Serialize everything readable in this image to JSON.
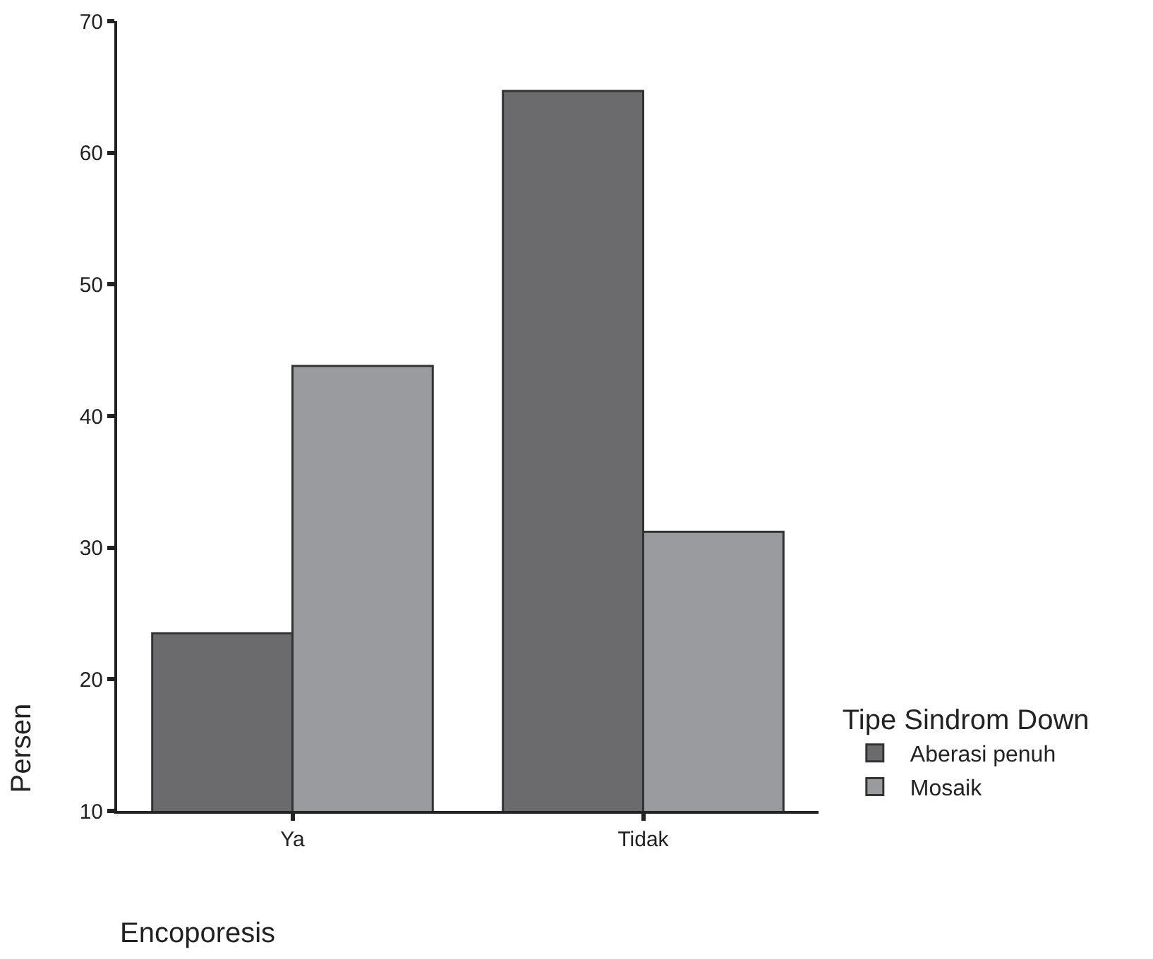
{
  "chart_data": {
    "type": "bar",
    "xlabel": "Encoporesis",
    "ylabel": "Persen",
    "legend_title": "Tipe Sindrom Down",
    "categories": [
      "Ya",
      "Tidak"
    ],
    "series": [
      {
        "name": "Aberasi penuh",
        "color": "#6b6b6d",
        "values": [
          23.5,
          64.7
        ]
      },
      {
        "name": "Mosaik",
        "color": "#9a9b9e",
        "values": [
          43.8,
          31.2
        ]
      }
    ],
    "ylim": [
      10,
      70
    ],
    "yticks": [
      10,
      20,
      30,
      40,
      50,
      60,
      70
    ],
    "grid": false,
    "legend": "right"
  }
}
